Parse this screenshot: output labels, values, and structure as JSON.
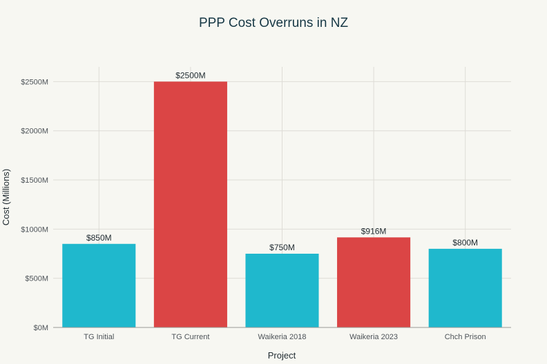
{
  "chart_data": {
    "type": "bar",
    "title": "PPP Cost Overruns in NZ",
    "xlabel": "Project",
    "ylabel": "Cost (Millions)",
    "categories": [
      "TG Initial",
      "TG Current",
      "Waikeria 2018",
      "Waikeria 2023",
      "Chch Prison"
    ],
    "values": [
      850,
      2500,
      750,
      916,
      800
    ],
    "data_labels": [
      "$850M",
      "$2500M",
      "$750M",
      "$916M",
      "$800M"
    ],
    "bar_colors": [
      "#1fb8cd",
      "#db4545",
      "#1fb8cd",
      "#db4545",
      "#1fb8cd"
    ],
    "ylim": [
      0,
      2650
    ],
    "yticks": [
      0,
      500,
      1000,
      1500,
      2000,
      2500
    ],
    "ytick_labels": [
      "$0M",
      "$500M",
      "$1000M",
      "$1500M",
      "$2000M",
      "$2500M"
    ],
    "grid": true,
    "legend": "none"
  }
}
